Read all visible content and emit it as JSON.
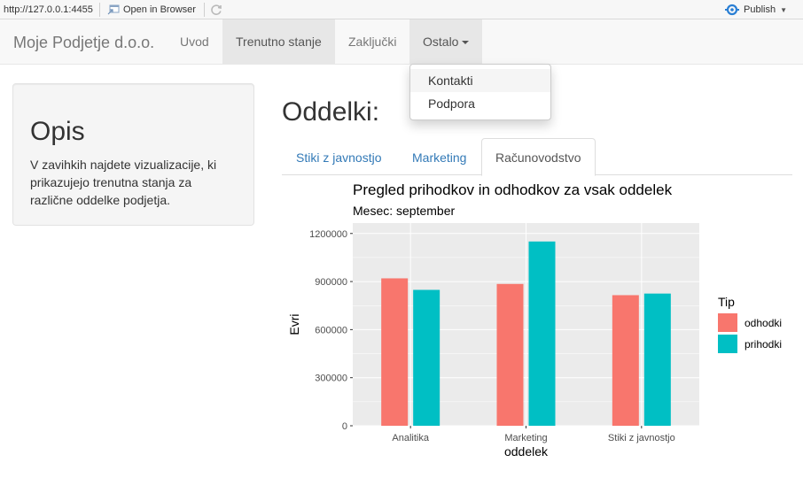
{
  "viewer": {
    "url": "http://127.0.0.1:4455",
    "open_browser_label": "Open in Browser",
    "publish_label": "Publish"
  },
  "navbar": {
    "brand": "Moje Podjetje d.o.o.",
    "items": [
      {
        "label": "Uvod"
      },
      {
        "label": "Trenutno stanje"
      },
      {
        "label": "Zaključki"
      },
      {
        "label": "Ostalo"
      }
    ],
    "dropdown": [
      {
        "label": "Kontakti"
      },
      {
        "label": "Podpora"
      }
    ]
  },
  "sidebar": {
    "title": "Opis",
    "text": "V zavihkih najdete vizualizacije, ki prikazujejo trenutna stanja za različne oddelke podjetja."
  },
  "main": {
    "title": "Oddelki:",
    "tabs": [
      {
        "label": "Stiki z javnostjo"
      },
      {
        "label": "Marketing"
      },
      {
        "label": "Računovodstvo"
      }
    ]
  },
  "chart_data": {
    "type": "bar",
    "title": "Pregled prihodkov in odhodkov za vsak oddelek",
    "subtitle": "Mesec: september",
    "xlabel": "oddelek",
    "ylabel": "Evri",
    "categories": [
      "Analitika",
      "Marketing",
      "Stiki z javnostjo"
    ],
    "series": [
      {
        "name": "odhodki",
        "color": "#F8766D",
        "values": [
          920000,
          885000,
          815000
        ]
      },
      {
        "name": "prihodki",
        "color": "#00BFC4",
        "values": [
          848000,
          1150000,
          825000
        ]
      }
    ],
    "yticks": [
      0,
      300000,
      600000,
      900000,
      1200000
    ],
    "ylim": [
      0,
      1265000
    ],
    "legend": {
      "title": "Tip",
      "position": "right"
    },
    "grid": true
  }
}
